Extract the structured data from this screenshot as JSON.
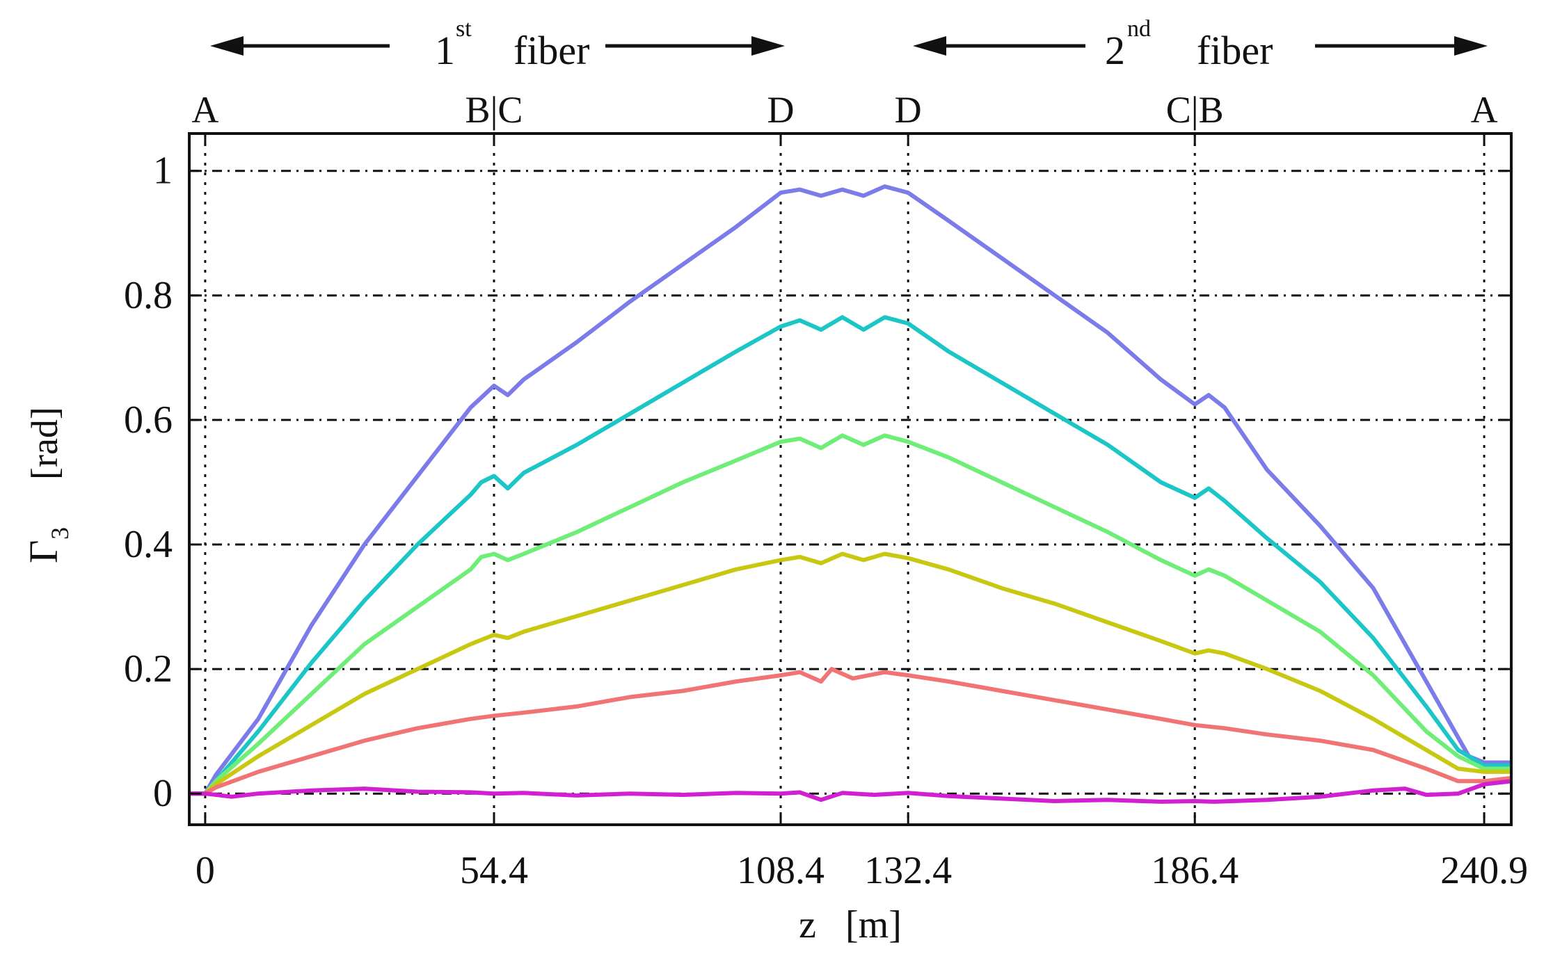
{
  "chart_data": {
    "type": "line",
    "title": "",
    "xlabel": "z   [m]",
    "ylabel": {
      "symbol": "Γ",
      "subscript": "3",
      "unit": "[rad]"
    },
    "xlim": [
      -3,
      246
    ],
    "ylim": [
      -0.05,
      1.06
    ],
    "xticks": [
      {
        "value": 0,
        "label": "0"
      },
      {
        "value": 54.4,
        "label": "54.4"
      },
      {
        "value": 108.4,
        "label": "108.4"
      },
      {
        "value": 132.4,
        "label": "132.4"
      },
      {
        "value": 186.4,
        "label": "186.4"
      },
      {
        "value": 240.9,
        "label": "240.9"
      }
    ],
    "yticks": [
      {
        "value": 0,
        "label": "0"
      },
      {
        "value": 0.2,
        "label": "0.2"
      },
      {
        "value": 0.4,
        "label": "0.4"
      },
      {
        "value": 0.6,
        "label": "0.6"
      },
      {
        "value": 0.8,
        "label": "0.8"
      },
      {
        "value": 1,
        "label": "1"
      }
    ],
    "grid": true,
    "top_labels": [
      {
        "value": 0,
        "label": "A"
      },
      {
        "value": 54.4,
        "label": "B|C"
      },
      {
        "value": 108.4,
        "label": "D"
      },
      {
        "value": 132.4,
        "label": "D"
      },
      {
        "value": 186.4,
        "label": "C|B"
      },
      {
        "value": 240.9,
        "label": "A"
      }
    ],
    "fiber_annotations": [
      {
        "label": "fiber",
        "number": "1",
        "superscript": "st",
        "from": 0,
        "to": 108.4
      },
      {
        "label": "fiber",
        "number": "2",
        "superscript": "nd",
        "from": 132.4,
        "to": 240.9
      }
    ],
    "series": [
      {
        "name": "series-1",
        "color": "#7b7bea",
        "points": [
          [
            -3,
            0
          ],
          [
            0,
            0
          ],
          [
            2,
            0.03
          ],
          [
            10,
            0.12
          ],
          [
            20,
            0.27
          ],
          [
            30,
            0.4
          ],
          [
            40,
            0.51
          ],
          [
            50,
            0.62
          ],
          [
            54.4,
            0.655
          ],
          [
            57,
            0.64
          ],
          [
            60,
            0.665
          ],
          [
            70,
            0.725
          ],
          [
            80,
            0.79
          ],
          [
            90,
            0.85
          ],
          [
            100,
            0.91
          ],
          [
            108.4,
            0.965
          ],
          [
            112,
            0.97
          ],
          [
            116,
            0.96
          ],
          [
            120,
            0.97
          ],
          [
            124,
            0.96
          ],
          [
            128,
            0.975
          ],
          [
            132.4,
            0.965
          ],
          [
            140,
            0.92
          ],
          [
            150,
            0.86
          ],
          [
            160,
            0.8
          ],
          [
            170,
            0.74
          ],
          [
            180,
            0.665
          ],
          [
            186.4,
            0.625
          ],
          [
            189,
            0.64
          ],
          [
            192,
            0.62
          ],
          [
            200,
            0.52
          ],
          [
            210,
            0.43
          ],
          [
            220,
            0.33
          ],
          [
            230,
            0.18
          ],
          [
            236,
            0.09
          ],
          [
            238,
            0.06
          ],
          [
            240.9,
            0.05
          ],
          [
            246,
            0.05
          ]
        ]
      },
      {
        "name": "series-2",
        "color": "#1cc6c6",
        "points": [
          [
            -3,
            0
          ],
          [
            0,
            0
          ],
          [
            2,
            0.02
          ],
          [
            10,
            0.1
          ],
          [
            20,
            0.21
          ],
          [
            30,
            0.31
          ],
          [
            40,
            0.4
          ],
          [
            50,
            0.48
          ],
          [
            52,
            0.5
          ],
          [
            54.4,
            0.51
          ],
          [
            57,
            0.49
          ],
          [
            60,
            0.515
          ],
          [
            70,
            0.56
          ],
          [
            80,
            0.61
          ],
          [
            90,
            0.66
          ],
          [
            100,
            0.71
          ],
          [
            108.4,
            0.75
          ],
          [
            112,
            0.76
          ],
          [
            116,
            0.745
          ],
          [
            120,
            0.765
          ],
          [
            124,
            0.745
          ],
          [
            128,
            0.765
          ],
          [
            132.4,
            0.755
          ],
          [
            140,
            0.71
          ],
          [
            150,
            0.66
          ],
          [
            160,
            0.61
          ],
          [
            170,
            0.56
          ],
          [
            180,
            0.5
          ],
          [
            186.4,
            0.475
          ],
          [
            189,
            0.49
          ],
          [
            192,
            0.47
          ],
          [
            200,
            0.41
          ],
          [
            210,
            0.34
          ],
          [
            220,
            0.25
          ],
          [
            230,
            0.14
          ],
          [
            236,
            0.07
          ],
          [
            240.9,
            0.045
          ],
          [
            246,
            0.045
          ]
        ]
      },
      {
        "name": "series-3",
        "color": "#6eee76",
        "points": [
          [
            -3,
            0
          ],
          [
            0,
            0
          ],
          [
            2,
            0.02
          ],
          [
            10,
            0.08
          ],
          [
            20,
            0.16
          ],
          [
            30,
            0.24
          ],
          [
            40,
            0.3
          ],
          [
            50,
            0.36
          ],
          [
            52,
            0.38
          ],
          [
            54.4,
            0.385
          ],
          [
            57,
            0.375
          ],
          [
            60,
            0.385
          ],
          [
            70,
            0.42
          ],
          [
            80,
            0.46
          ],
          [
            90,
            0.5
          ],
          [
            100,
            0.535
          ],
          [
            108.4,
            0.565
          ],
          [
            112,
            0.57
          ],
          [
            116,
            0.555
          ],
          [
            120,
            0.575
          ],
          [
            124,
            0.56
          ],
          [
            128,
            0.575
          ],
          [
            132.4,
            0.565
          ],
          [
            140,
            0.54
          ],
          [
            150,
            0.5
          ],
          [
            160,
            0.46
          ],
          [
            170,
            0.42
          ],
          [
            180,
            0.375
          ],
          [
            186.4,
            0.35
          ],
          [
            189,
            0.36
          ],
          [
            192,
            0.35
          ],
          [
            200,
            0.31
          ],
          [
            210,
            0.26
          ],
          [
            220,
            0.19
          ],
          [
            230,
            0.1
          ],
          [
            236,
            0.06
          ],
          [
            240.9,
            0.04
          ],
          [
            246,
            0.04
          ]
        ]
      },
      {
        "name": "series-4",
        "color": "#c8c812",
        "points": [
          [
            -3,
            0
          ],
          [
            0,
            0
          ],
          [
            2,
            0.015
          ],
          [
            10,
            0.06
          ],
          [
            20,
            0.11
          ],
          [
            30,
            0.16
          ],
          [
            40,
            0.2
          ],
          [
            50,
            0.24
          ],
          [
            54.4,
            0.255
          ],
          [
            57,
            0.25
          ],
          [
            60,
            0.26
          ],
          [
            70,
            0.285
          ],
          [
            80,
            0.31
          ],
          [
            90,
            0.335
          ],
          [
            100,
            0.36
          ],
          [
            108.4,
            0.375
          ],
          [
            112,
            0.38
          ],
          [
            116,
            0.37
          ],
          [
            120,
            0.385
          ],
          [
            124,
            0.375
          ],
          [
            128,
            0.385
          ],
          [
            132.4,
            0.378
          ],
          [
            140,
            0.36
          ],
          [
            150,
            0.33
          ],
          [
            160,
            0.305
          ],
          [
            170,
            0.275
          ],
          [
            180,
            0.245
          ],
          [
            186.4,
            0.225
          ],
          [
            189,
            0.23
          ],
          [
            192,
            0.225
          ],
          [
            200,
            0.2
          ],
          [
            210,
            0.165
          ],
          [
            220,
            0.12
          ],
          [
            230,
            0.07
          ],
          [
            236,
            0.04
          ],
          [
            240.9,
            0.035
          ],
          [
            246,
            0.035
          ]
        ]
      },
      {
        "name": "series-5",
        "color": "#f07474",
        "points": [
          [
            -3,
            0
          ],
          [
            0,
            0
          ],
          [
            2,
            0.01
          ],
          [
            10,
            0.035
          ],
          [
            20,
            0.06
          ],
          [
            30,
            0.085
          ],
          [
            40,
            0.105
          ],
          [
            50,
            0.12
          ],
          [
            54.4,
            0.125
          ],
          [
            60,
            0.13
          ],
          [
            70,
            0.14
          ],
          [
            80,
            0.155
          ],
          [
            90,
            0.165
          ],
          [
            100,
            0.18
          ],
          [
            108.4,
            0.19
          ],
          [
            112,
            0.195
          ],
          [
            116,
            0.18
          ],
          [
            118,
            0.2
          ],
          [
            122,
            0.185
          ],
          [
            128,
            0.195
          ],
          [
            132.4,
            0.19
          ],
          [
            140,
            0.18
          ],
          [
            150,
            0.165
          ],
          [
            160,
            0.15
          ],
          [
            170,
            0.135
          ],
          [
            180,
            0.12
          ],
          [
            186.4,
            0.11
          ],
          [
            192,
            0.105
          ],
          [
            200,
            0.095
          ],
          [
            210,
            0.085
          ],
          [
            220,
            0.07
          ],
          [
            230,
            0.04
          ],
          [
            236,
            0.02
          ],
          [
            240.9,
            0.02
          ],
          [
            246,
            0.025
          ]
        ]
      },
      {
        "name": "series-6",
        "color": "#d020d0",
        "points": [
          [
            -3,
            0
          ],
          [
            0,
            0
          ],
          [
            5,
            -0.005
          ],
          [
            10,
            0
          ],
          [
            20,
            0.005
          ],
          [
            30,
            0.008
          ],
          [
            40,
            0.003
          ],
          [
            50,
            0.002
          ],
          [
            54.4,
            0
          ],
          [
            60,
            0.001
          ],
          [
            70,
            -0.003
          ],
          [
            80,
            0
          ],
          [
            90,
            -0.002
          ],
          [
            100,
            0.001
          ],
          [
            108.4,
            0
          ],
          [
            112,
            0.002
          ],
          [
            116,
            -0.01
          ],
          [
            120,
            0.001
          ],
          [
            126,
            -0.002
          ],
          [
            132.4,
            0.001
          ],
          [
            140,
            -0.004
          ],
          [
            150,
            -0.008
          ],
          [
            160,
            -0.012
          ],
          [
            170,
            -0.01
          ],
          [
            180,
            -0.013
          ],
          [
            186.4,
            -0.012
          ],
          [
            190,
            -0.013
          ],
          [
            200,
            -0.01
          ],
          [
            210,
            -0.005
          ],
          [
            220,
            0.005
          ],
          [
            226,
            0.008
          ],
          [
            230,
            -0.002
          ],
          [
            236,
            0
          ],
          [
            240.9,
            0.015
          ],
          [
            246,
            0.02
          ]
        ]
      }
    ]
  }
}
